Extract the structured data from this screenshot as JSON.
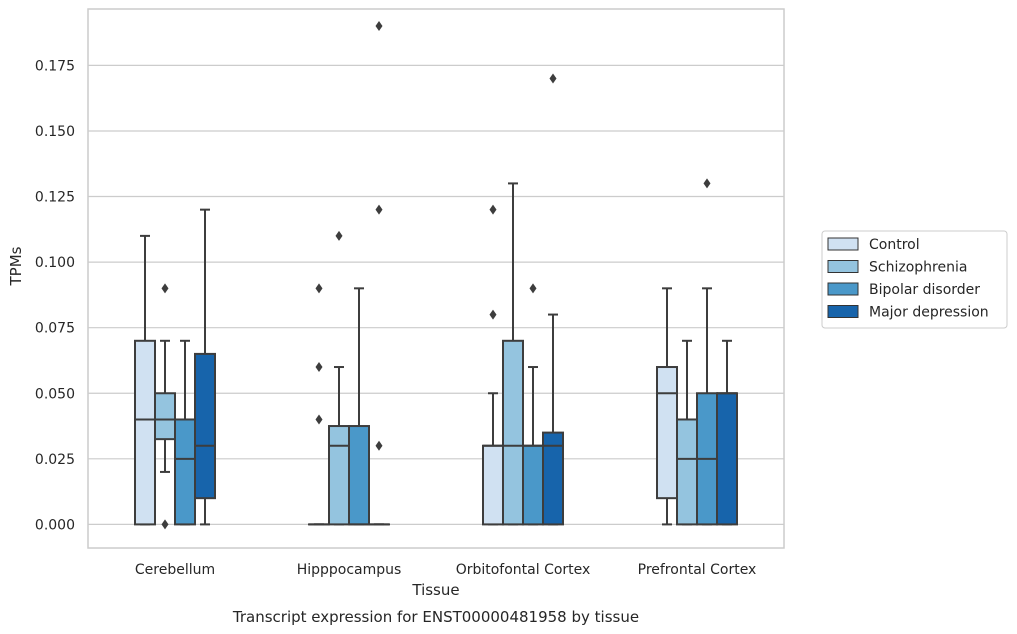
{
  "chart_data": {
    "type": "box",
    "title": "Transcript expression for ENST00000481958 by tissue",
    "xlabel": "Tissue",
    "ylabel": "TPMs",
    "categories": [
      "Cerebellum",
      "Hipppocampus",
      "Orbitofontal Cortex",
      "Prefrontal Cortex"
    ],
    "ylim": [
      -0.009,
      0.1965
    ],
    "yticks": [
      0.0,
      0.025,
      0.05,
      0.075,
      0.1,
      0.125,
      0.15,
      0.175
    ],
    "ytick_labels": [
      "0.000",
      "0.025",
      "0.050",
      "0.075",
      "0.100",
      "0.125",
      "0.150",
      "0.175"
    ],
    "grid": true,
    "legend_position": "right",
    "series": [
      {
        "name": "Control",
        "color": "#d0e1f2",
        "boxes": [
          {
            "whislo": 0.0,
            "q1": 0.0,
            "med": 0.04,
            "q3": 0.07,
            "whishi": 0.11,
            "fliers": []
          },
          {
            "whislo": 0.0,
            "q1": 0.0,
            "med": 0.0,
            "q3": 0.0,
            "whishi": 0.0,
            "fliers": [
              0.04,
              0.06,
              0.09
            ]
          },
          {
            "whislo": 0.0,
            "q1": 0.0,
            "med": 0.03,
            "q3": 0.03,
            "whishi": 0.05,
            "fliers": [
              0.08,
              0.12
            ]
          },
          {
            "whislo": 0.0,
            "q1": 0.01,
            "med": 0.05,
            "q3": 0.06,
            "whishi": 0.09,
            "fliers": []
          }
        ]
      },
      {
        "name": "Schizophrenia",
        "color": "#94c4df",
        "boxes": [
          {
            "whislo": 0.02,
            "q1": 0.0325,
            "med": 0.04,
            "q3": 0.05,
            "whishi": 0.07,
            "fliers": [
              0.0,
              0.09
            ]
          },
          {
            "whislo": 0.0,
            "q1": 0.0,
            "med": 0.03,
            "q3": 0.0375,
            "whishi": 0.06,
            "fliers": [
              0.11
            ]
          },
          {
            "whislo": 0.0,
            "q1": 0.0,
            "med": 0.03,
            "q3": 0.07,
            "whishi": 0.13,
            "fliers": []
          },
          {
            "whislo": 0.0,
            "q1": 0.0,
            "med": 0.025,
            "q3": 0.04,
            "whishi": 0.07,
            "fliers": []
          }
        ]
      },
      {
        "name": "Bipolar disorder",
        "color": "#4a98c9",
        "boxes": [
          {
            "whislo": 0.0,
            "q1": 0.0,
            "med": 0.025,
            "q3": 0.04,
            "whishi": 0.07,
            "fliers": []
          },
          {
            "whislo": 0.0,
            "q1": 0.0,
            "med": 0.0,
            "q3": 0.0375,
            "whishi": 0.09,
            "fliers": []
          },
          {
            "whislo": 0.0,
            "q1": 0.0,
            "med": 0.03,
            "q3": 0.03,
            "whishi": 0.06,
            "fliers": [
              0.09
            ]
          },
          {
            "whislo": 0.0,
            "q1": 0.0,
            "med": 0.025,
            "q3": 0.05,
            "whishi": 0.09,
            "fliers": [
              0.13
            ]
          }
        ]
      },
      {
        "name": "Major depression",
        "color": "#1764ab",
        "boxes": [
          {
            "whislo": 0.0,
            "q1": 0.01,
            "med": 0.03,
            "q3": 0.065,
            "whishi": 0.12,
            "fliers": []
          },
          {
            "whislo": 0.0,
            "q1": 0.0,
            "med": 0.0,
            "q3": 0.0,
            "whishi": 0.0,
            "fliers": [
              0.03,
              0.12,
              0.19
            ]
          },
          {
            "whislo": 0.0,
            "q1": 0.0,
            "med": 0.03,
            "q3": 0.035,
            "whishi": 0.08,
            "fliers": [
              0.17
            ]
          },
          {
            "whislo": 0.0,
            "q1": 0.0,
            "med": 0.05,
            "q3": 0.05,
            "whishi": 0.07,
            "fliers": []
          }
        ]
      }
    ]
  }
}
